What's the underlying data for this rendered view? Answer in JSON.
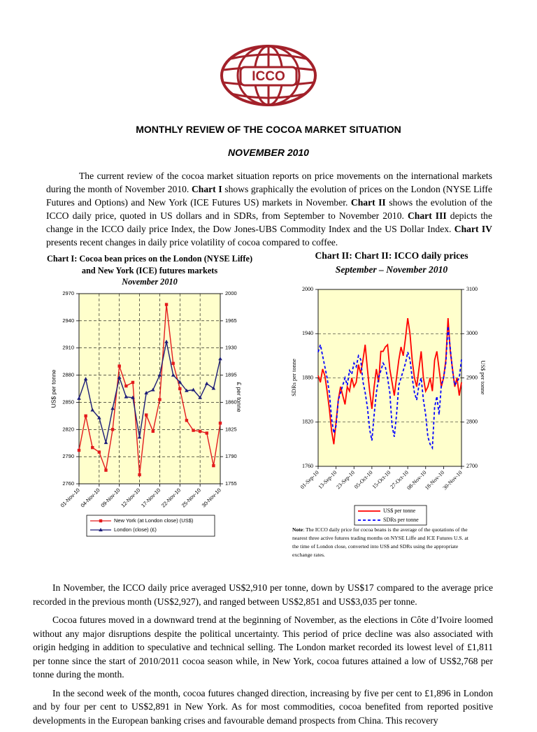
{
  "header": {
    "logo_text": "ICCO",
    "title": "MONTHLY REVIEW OF THE COCOA MARKET SITUATION",
    "subtitle": "NOVEMBER 2010"
  },
  "intro": [
    {
      "text": "The current review of the cocoa market situation reports on price movements on the international markets during the month of November 2010. "
    },
    {
      "text": "Chart I",
      "bold": true
    },
    {
      "text": " shows graphically the evolution of prices on the London (NYSE Liffe Futures and Options) and New York (ICE Futures US) markets in November. "
    },
    {
      "text": "Chart II",
      "bold": true
    },
    {
      "text": " shows the evolution of the ICCO daily price, quoted in US dollars and in SDRs, from September to November 2010. "
    },
    {
      "text": "Chart III",
      "bold": true
    },
    {
      "text": " depicts the change in the ICCO daily price Index, the Dow Jones-UBS Commodity Index and the US Dollar Index. "
    },
    {
      "text": "Chart IV",
      "bold": true
    },
    {
      "text": " presents recent changes in daily price volatility of cocoa compared to coffee."
    }
  ],
  "note": {
    "label": "Note",
    "text": ": The ICCO daily price for cocoa beans is the average of the quotations of the nearest three active futures trading months on NYSE Liffe and ICE Futures U.S. at the time of London close, converted into US$ and SDRs using the appropriate exchange rates."
  },
  "paragraphs": [
    "In November, the ICCO daily price averaged US$2,910 per tonne, down by US$17 compared to the average price recorded in the previous month (US$2,927), and ranged between US$2,851 and US$3,035 per tonne.",
    "Cocoa futures moved in a downward trend at the beginning of November, as the elections in Côte d’Ivoire loomed without any major disruptions despite the political uncertainty. This period of price decline was also associated with origin hedging in addition to speculative and technical selling. The London market recorded its lowest level of £1,811 per tonne since the start of 2010/2011 cocoa season while, in New York, cocoa futures attained a low of US$2,768 per tonne during the month.",
    "In the second week of the month, cocoa futures changed direction, increasing by five per cent to £1,896 in London and by four per cent to US$2,891 in New York. As for most commodities, cocoa benefited from reported positive developments in the European banking crises and favourable demand prospects from China. This recovery"
  ],
  "chart_data": [
    {
      "type": "line",
      "title": "Chart I: Cocoa bean prices on the London (NYSE Liffe) and New York (ICE) futures markets",
      "subtitle": "November 2010",
      "ylabel": "US$ per tonne",
      "y2label": "£ per tonne",
      "categories": [
        "01-Nov-10",
        null,
        null,
        "04-Nov-10",
        null,
        null,
        "09-Nov-10",
        null,
        null,
        "12-Nov-10",
        null,
        null,
        "17-Nov-10",
        null,
        null,
        "22-Nov-10",
        null,
        null,
        "25-Nov-10",
        null,
        null,
        "30-Nov-10"
      ],
      "series": [
        {
          "name": "New York (at London close) (US$)",
          "color": "#e31a1c",
          "marker": "square",
          "axis": "y",
          "values": [
            2797,
            2835,
            2800,
            2795,
            2775,
            2820,
            2890,
            2868,
            2872,
            2770,
            2836,
            2818,
            2853,
            2958,
            2893,
            2865,
            2830,
            2819,
            2818,
            2816,
            2780,
            2827
          ]
        },
        {
          "name": "London (close) (£)",
          "color": "#1c1c78",
          "marker": "triangle",
          "axis": "y2",
          "values": [
            1865,
            1890,
            1850,
            1840,
            1808,
            1852,
            1892,
            1867,
            1866,
            1815,
            1872,
            1876,
            1895,
            1938,
            1895,
            1886,
            1875,
            1876,
            1866,
            1884,
            1878,
            1916
          ]
        }
      ],
      "ylim": [
        2760,
        2970
      ],
      "yticks": [
        2760,
        2790,
        2820,
        2850,
        2880,
        2910,
        2940,
        2970
      ],
      "y2lim": [
        1755,
        2000
      ],
      "y2ticks": [
        1755,
        1790,
        1825,
        1860,
        1895,
        1930,
        1965,
        2000
      ],
      "grid": true,
      "xgrid": true,
      "plot_color": "#ffffcc",
      "legend": "bottom"
    },
    {
      "type": "line",
      "title": "Chart II: Chart II:  ICCO daily prices",
      "subtitle": "September – November 2010",
      "ylabel": "SDRs per tonne",
      "y2label": "US$ per tonne",
      "categories": [
        "01-Sep-10",
        null,
        null,
        null,
        null,
        null,
        null,
        null,
        "13-Sep-10",
        null,
        null,
        null,
        null,
        null,
        null,
        null,
        "23-Sep-10",
        null,
        null,
        null,
        null,
        null,
        null,
        null,
        "05-Oct-10",
        null,
        null,
        null,
        null,
        null,
        null,
        null,
        "15-Oct-10",
        null,
        null,
        null,
        null,
        null,
        null,
        null,
        "27-Oct-10",
        null,
        null,
        null,
        null,
        null,
        null,
        null,
        "08-Nov-10",
        null,
        null,
        null,
        null,
        null,
        null,
        null,
        "18-Nov-10",
        null,
        null,
        null,
        null,
        null,
        null,
        null,
        "30-Nov-10"
      ],
      "series": [
        {
          "name": "US$ per tonne",
          "color": "#ff0000",
          "line_style": "solid",
          "axis": "y2",
          "values": [
            2905,
            2890,
            2920,
            2905,
            2870,
            2830,
            2780,
            2750,
            2800,
            2850,
            2880,
            2860,
            2840,
            2880,
            2870,
            2900,
            2880,
            2890,
            2930,
            2910,
            2940,
            2975,
            2920,
            2870,
            2830,
            2880,
            2920,
            2890,
            2960,
            2960,
            2970,
            2975,
            2920,
            2890,
            2860,
            2900,
            2940,
            2970,
            2950,
            2990,
            3035,
            3000,
            2940,
            2900,
            2880,
            2920,
            2960,
            2900,
            2870,
            2880,
            2900,
            2870,
            2940,
            2960,
            2920,
            2880,
            2900,
            2940,
            3035,
            2960,
            2920,
            2880,
            2900,
            2860,
            2890
          ]
        },
        {
          "name": "SDRs per tonne",
          "color": "#0000ff",
          "line_style": "dashed",
          "axis": "y",
          "values": [
            1915,
            1925,
            1910,
            1895,
            1880,
            1860,
            1825,
            1805,
            1815,
            1850,
            1860,
            1870,
            1880,
            1870,
            1890,
            1885,
            1900,
            1895,
            1910,
            1905,
            1875,
            1860,
            1840,
            1810,
            1795,
            1830,
            1860,
            1880,
            1890,
            1900,
            1895,
            1880,
            1860,
            1815,
            1800,
            1830,
            1870,
            1880,
            1890,
            1900,
            1915,
            1905,
            1880,
            1860,
            1850,
            1870,
            1880,
            1850,
            1830,
            1800,
            1790,
            1785,
            1840,
            1855,
            1830,
            1870,
            1880,
            1900,
            1950,
            1920,
            1890,
            1870,
            1875,
            1880,
            1905
          ]
        }
      ],
      "ylim": [
        1760,
        2000
      ],
      "yticks": [
        1760,
        1820,
        1880,
        1940,
        2000
      ],
      "y2lim": [
        2700,
        3100
      ],
      "y2ticks": [
        2700,
        2800,
        2900,
        3000,
        3100
      ],
      "grid": true,
      "xgrid": false,
      "plot_color": "#ffffcc",
      "legend": "bottom"
    }
  ]
}
